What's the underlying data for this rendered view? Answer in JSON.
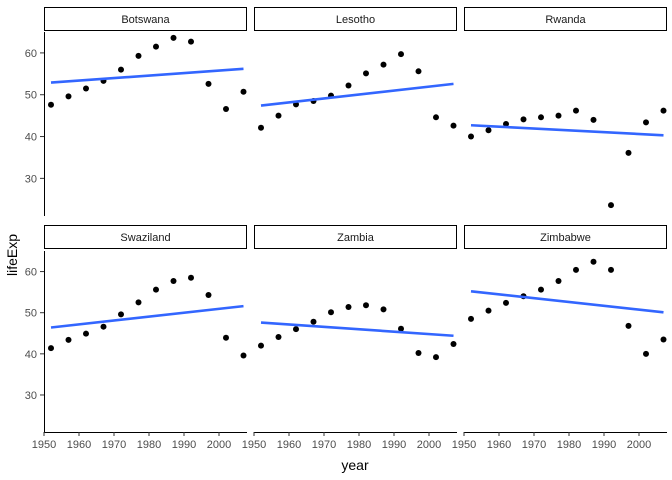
{
  "chart_data": {
    "type": "scatter",
    "xlabel": "year",
    "ylabel": "lifeExp",
    "xlim": [
      1950,
      2008
    ],
    "ylim": [
      21,
      65
    ],
    "x_ticks": [
      1950,
      1960,
      1970,
      1980,
      1990,
      2000
    ],
    "y_ticks": [
      30,
      40,
      50,
      60
    ],
    "grid": false,
    "fit_color": "#3366FF",
    "point_color": "#000000",
    "years": [
      1952,
      1957,
      1962,
      1967,
      1972,
      1977,
      1982,
      1987,
      1992,
      1997,
      2002,
      2007
    ],
    "panels": [
      {
        "name": "Botswana",
        "values": [
          47.6,
          49.6,
          51.5,
          53.3,
          56.0,
          59.3,
          61.5,
          63.6,
          62.7,
          52.6,
          46.6,
          50.7
        ],
        "fit": [
          52.9,
          56.2
        ]
      },
      {
        "name": "Lesotho",
        "values": [
          42.1,
          45.0,
          47.7,
          48.5,
          49.8,
          52.2,
          55.1,
          57.2,
          59.7,
          55.6,
          44.6,
          42.6
        ],
        "fit": [
          47.4,
          52.6
        ]
      },
      {
        "name": "Rwanda",
        "values": [
          40.0,
          41.5,
          43.0,
          44.1,
          44.6,
          45.0,
          46.2,
          44.0,
          23.6,
          36.1,
          43.4,
          46.2
        ],
        "fit": [
          42.7,
          40.3
        ]
      },
      {
        "name": "Swaziland",
        "values": [
          41.4,
          43.4,
          44.9,
          46.6,
          49.6,
          52.5,
          55.6,
          57.7,
          58.5,
          54.3,
          43.9,
          39.6
        ],
        "fit": [
          46.4,
          51.6
        ]
      },
      {
        "name": "Zambia",
        "values": [
          42.0,
          44.1,
          46.0,
          47.8,
          50.1,
          51.4,
          51.8,
          50.8,
          46.1,
          40.2,
          39.2,
          42.4
        ],
        "fit": [
          47.6,
          44.4
        ]
      },
      {
        "name": "Zimbabwe",
        "values": [
          48.5,
          50.5,
          52.4,
          54.0,
          55.6,
          57.7,
          60.4,
          62.4,
          60.4,
          46.8,
          40.0,
          43.5
        ],
        "fit": [
          55.2,
          50.1
        ]
      }
    ]
  }
}
